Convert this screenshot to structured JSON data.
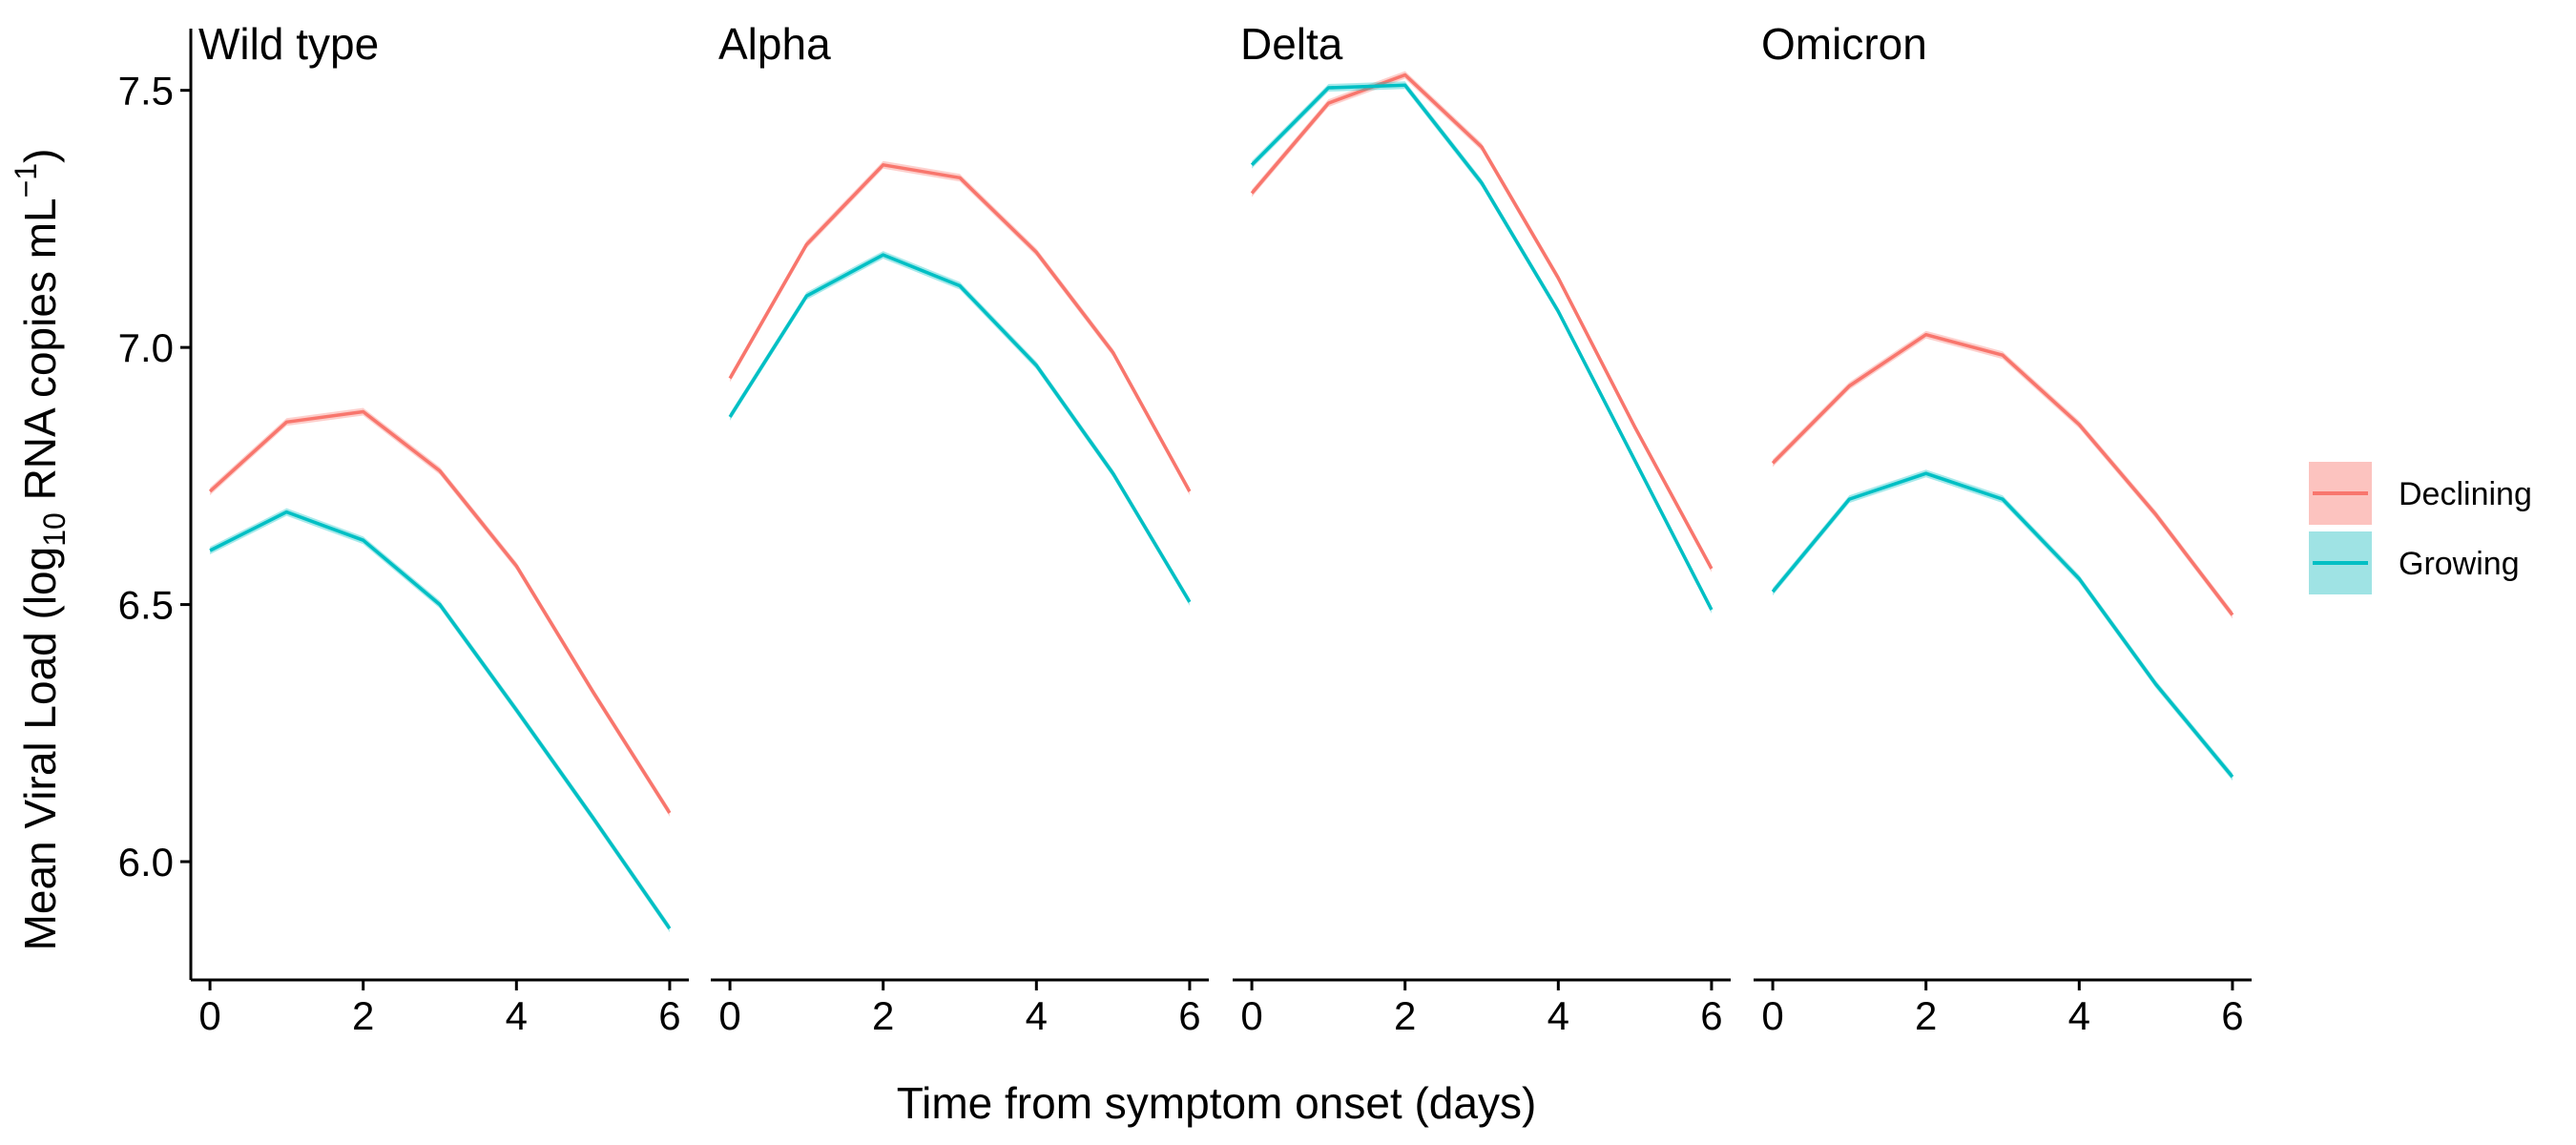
{
  "chart_data": {
    "type": "line",
    "xlabel": "Time from symptom onset (days)",
    "ylabel": {
      "prefix": "Mean Viral Load (log",
      "subscript": "10",
      "middle": " RNA copies mL",
      "superscript": "−1",
      "suffix": ")"
    },
    "ylim": [
      5.77,
      7.62
    ],
    "yticks": [
      6.0,
      6.5,
      7.0,
      7.5
    ],
    "ytick_labels": [
      "6.0",
      "6.5",
      "7.0",
      "7.5"
    ],
    "xlim": [
      -0.25,
      6.25
    ],
    "xticks": [
      0,
      2,
      4,
      6
    ],
    "xtick_labels": [
      "0",
      "2",
      "4",
      "6"
    ],
    "grid": false,
    "legend_position": "right",
    "x": [
      0,
      1,
      2,
      3,
      4,
      5,
      6
    ],
    "series_names": [
      "Declining",
      "Growing"
    ],
    "colors": {
      "Declining": "#F8766D",
      "Growing": "#00BFC4"
    },
    "band_colors": {
      "Declining": "#F8766D",
      "Growing": "#00BFC4"
    },
    "legend_box_colors": {
      "Declining": "#FCC3BF",
      "Growing": "#9FE3E4"
    },
    "facets": [
      {
        "title": "Wild type",
        "series": [
          {
            "name": "Declining",
            "values": [
              6.72,
              6.855,
              6.875,
              6.76,
              6.575,
              6.33,
              6.095
            ]
          },
          {
            "name": "Growing",
            "values": [
              6.605,
              6.68,
              6.625,
              6.5,
              6.295,
              6.085,
              5.87
            ]
          }
        ]
      },
      {
        "title": "Alpha",
        "series": [
          {
            "name": "Declining",
            "values": [
              6.94,
              7.2,
              7.355,
              7.33,
              7.185,
              6.99,
              6.72
            ]
          },
          {
            "name": "Growing",
            "values": [
              6.865,
              7.1,
              7.18,
              7.12,
              6.965,
              6.755,
              6.505
            ]
          }
        ]
      },
      {
        "title": "Delta",
        "series": [
          {
            "name": "Declining",
            "values": [
              7.3,
              7.475,
              7.53,
              7.39,
              7.135,
              6.845,
              6.57
            ]
          },
          {
            "name": "Growing",
            "values": [
              7.355,
              7.505,
              7.51,
              7.32,
              7.07,
              6.78,
              6.49
            ]
          }
        ]
      },
      {
        "title": "Omicron",
        "series": [
          {
            "name": "Declining",
            "values": [
              6.775,
              6.925,
              7.025,
              6.985,
              6.85,
              6.675,
              6.48
            ]
          },
          {
            "name": "Growing",
            "values": [
              6.525,
              6.705,
              6.755,
              6.705,
              6.55,
              6.345,
              6.165
            ]
          }
        ]
      }
    ]
  }
}
